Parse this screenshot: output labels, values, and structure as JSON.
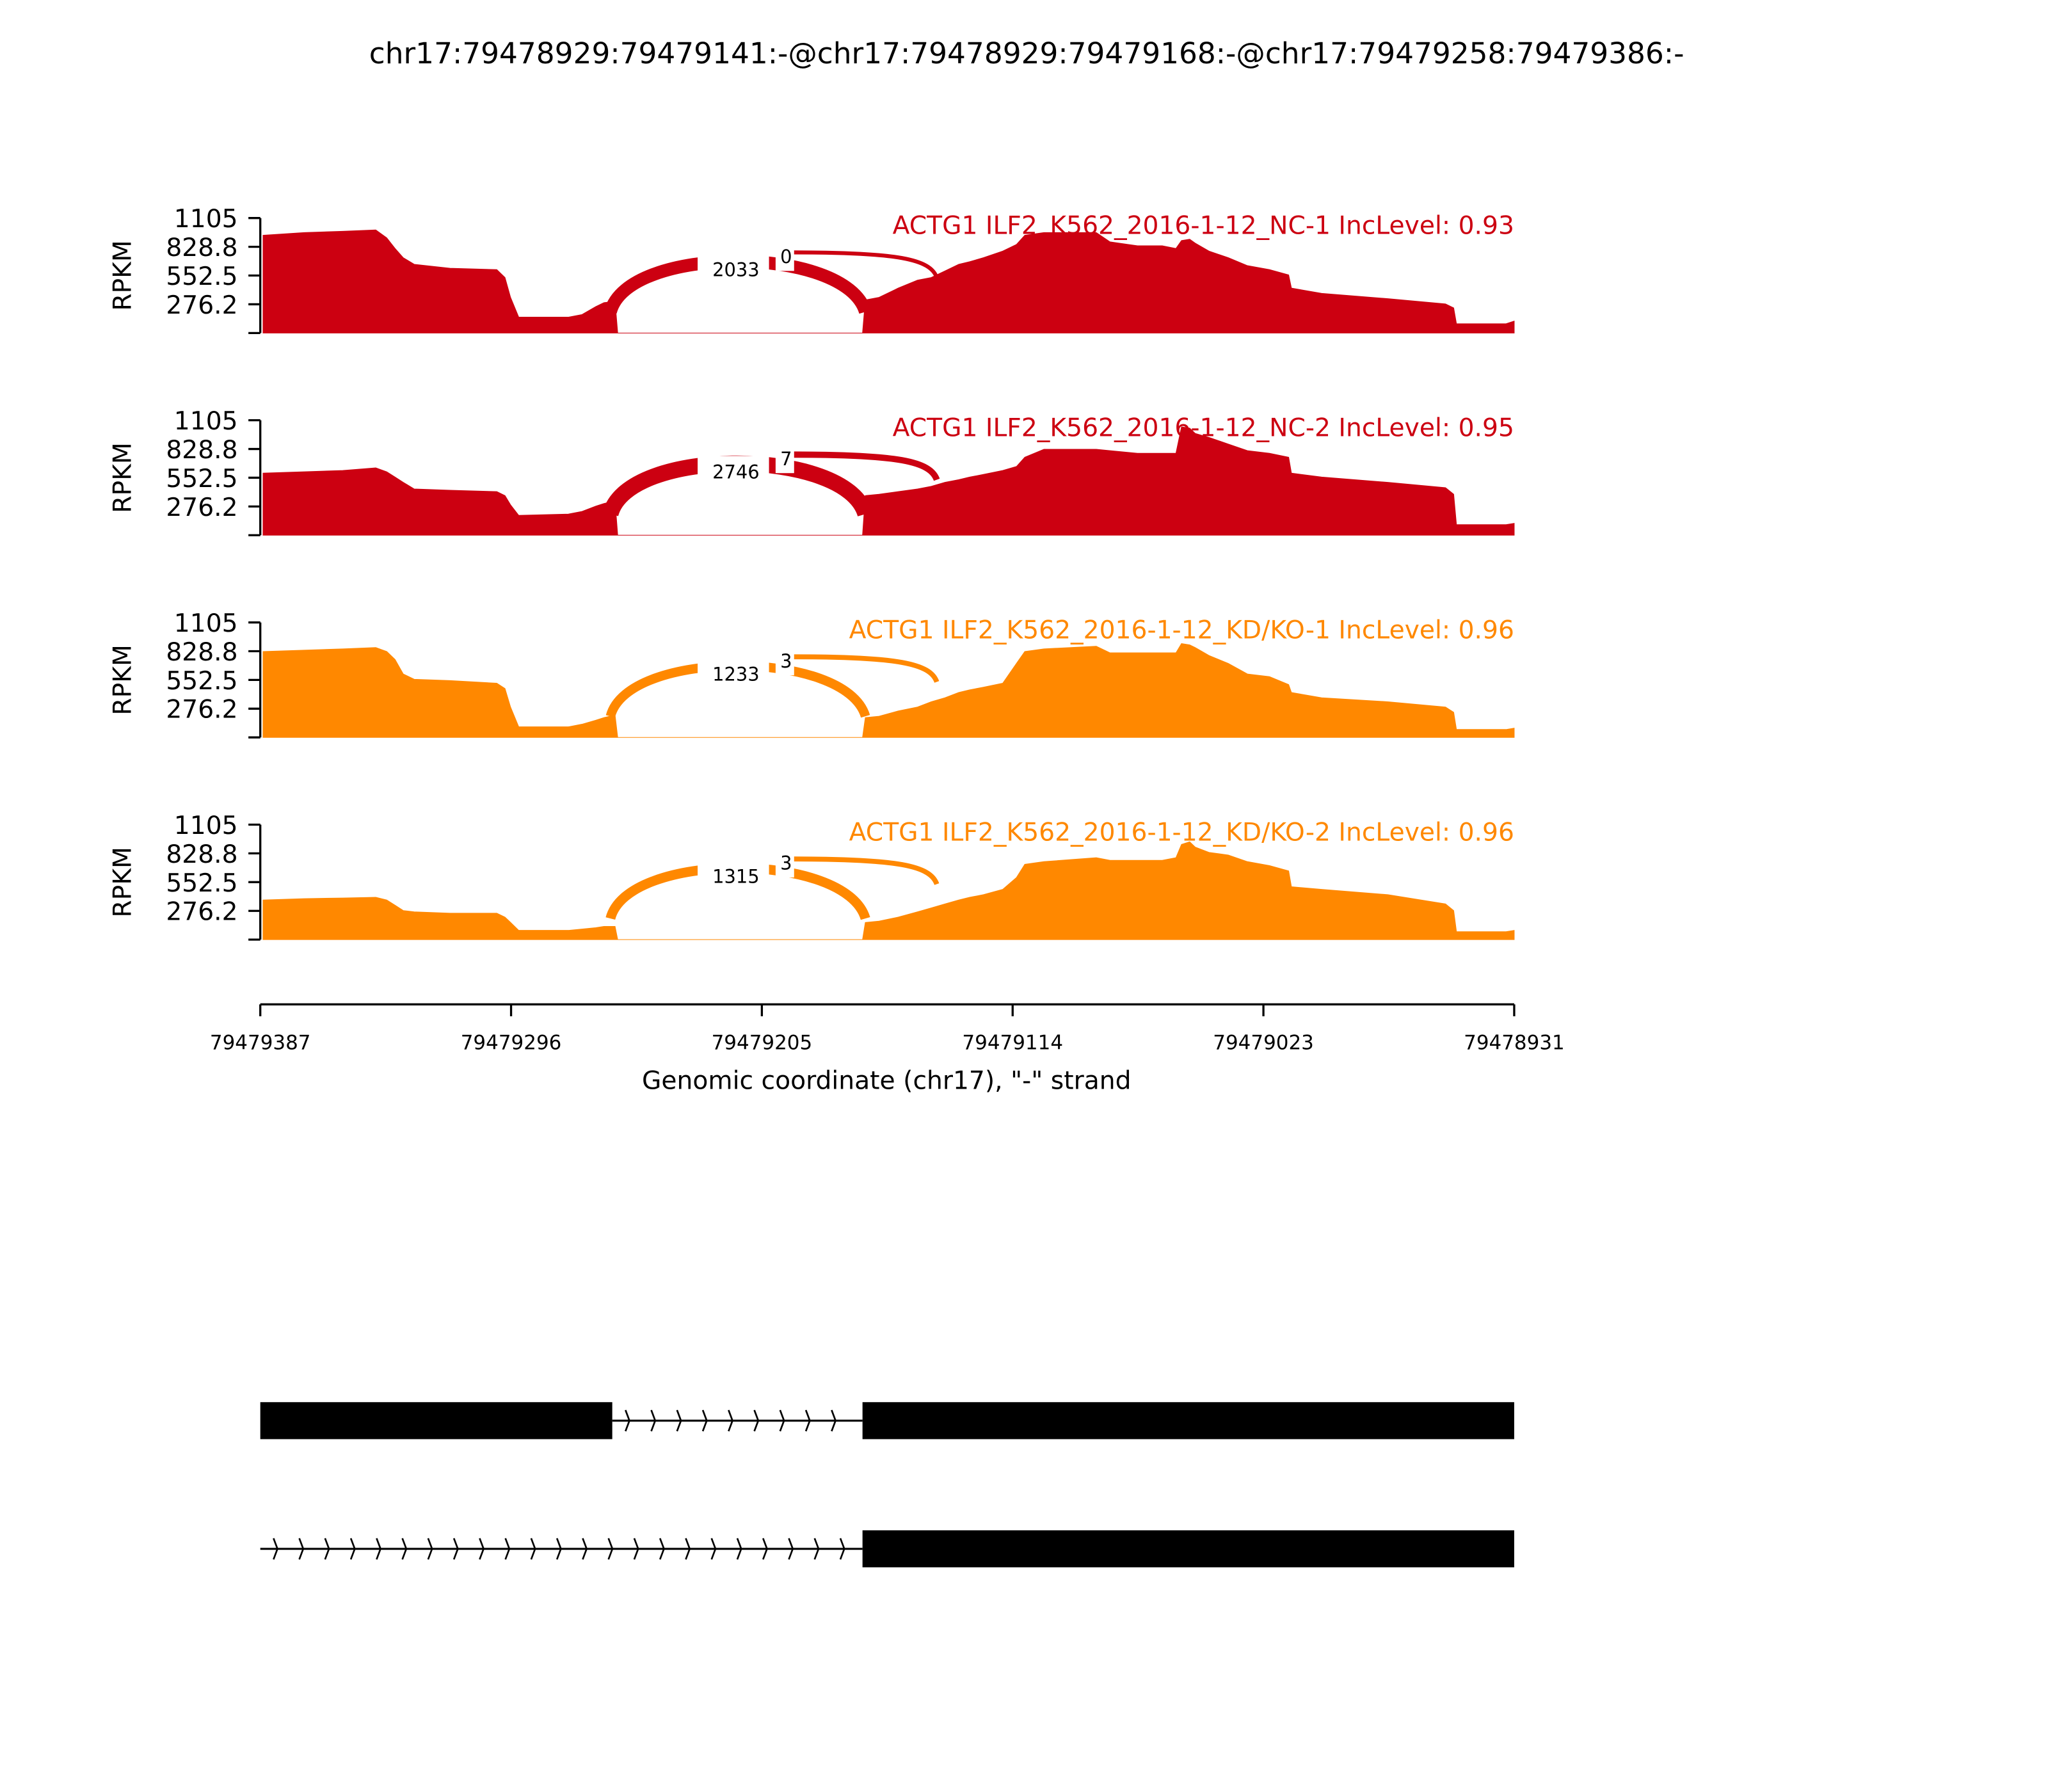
{
  "chart_data": {
    "type": "area",
    "title": "chr17:79478929:79479141:-@chr17:79478929:79479168:-@chr17:79479258:79479386:-",
    "xlabel": "Genomic coordinate (chr17), \"-\" strand",
    "ylabel": "RPKM",
    "xlim": [
      79479387,
      79478931
    ],
    "x_ticks": [
      "79479387",
      "79479296",
      "79479205",
      "79479114",
      "79479023",
      "79478931"
    ],
    "ylim": [
      0,
      1105
    ],
    "y_ticks": [
      "1105",
      "828.8",
      "552.5",
      "276.2"
    ],
    "positions": [
      79479386,
      79479371,
      79479357,
      79479345,
      79479341,
      79479338,
      79479335,
      79479331,
      79479318,
      79479301,
      79479298,
      79479296,
      79479293,
      79479275,
      79479270,
      79479265,
      79479262,
      79479258,
      79479257,
      79479168,
      79479167,
      79479162,
      79479155,
      79479148,
      79479143,
      79479138,
      79479133,
      79479129,
      79479124,
      79479117,
      79479112,
      79479109,
      79479102,
      79479083,
      79479078,
      79479068,
      79479059,
      79479054,
      79479052,
      79479049,
      79479047,
      79479042,
      79479035,
      79479028,
      79479020,
      79479013,
      79479012,
      79479001,
      79478977,
      79478956,
      79478953,
      79478952,
      79478934,
      79478931
    ],
    "series": [
      {
        "name": "ACTG1 ILF2_K562_2016-1-12_NC-1 IncLevel: 0.93",
        "color": "#CC0011",
        "junctions": [
          {
            "label": "2033",
            "count": 2033
          },
          {
            "label": "0",
            "count": 0
          }
        ],
        "rpkm": [
          940,
          965,
          978,
          991,
          914,
          813,
          724,
          660,
          622,
          610,
          533,
          343,
          152,
          152,
          178,
          254,
          292,
          305,
          0,
          0,
          318,
          343,
          432,
          508,
          533,
          597,
          660,
          686,
          724,
          787,
          851,
          940,
          965,
          965,
          876,
          838,
          838,
          813,
          889,
          902,
          864,
          787,
          724,
          648,
          610,
          559,
          432,
          381,
          330,
          279,
          241,
          89,
          89,
          114
        ]
      },
      {
        "name": "ACTG1 ILF2_K562_2016-1-12_NC-2 IncLevel: 0.95",
        "color": "#CC0011",
        "junctions": [
          {
            "label": "2746",
            "count": 2746
          },
          {
            "label": "7",
            "count": 7
          }
        ],
        "rpkm": [
          597,
          610,
          622,
          648,
          610,
          559,
          508,
          444,
          432,
          419,
          381,
          292,
          190,
          203,
          229,
          279,
          305,
          330,
          0,
          0,
          381,
          394,
          419,
          444,
          470,
          508,
          533,
          559,
          584,
          622,
          660,
          749,
          826,
          826,
          813,
          787,
          787,
          787,
          1042,
          1029,
          978,
          940,
          876,
          813,
          787,
          749,
          597,
          559,
          508,
          457,
          394,
          102,
          102,
          114
        ]
      },
      {
        "name": "ACTG1 ILF2_K562_2016-1-12_KD/KO-1 IncLevel: 0.96",
        "color": "#FF8800",
        "junctions": [
          {
            "label": "1233",
            "count": 1233
          },
          {
            "label": "3",
            "count": 3
          }
        ],
        "rpkm": [
          826,
          838,
          851,
          864,
          826,
          749,
          610,
          559,
          546,
          521,
          470,
          292,
          102,
          102,
          127,
          165,
          190,
          216,
          0,
          0,
          190,
          203,
          254,
          292,
          343,
          381,
          432,
          457,
          483,
          521,
          711,
          826,
          851,
          876,
          813,
          813,
          813,
          813,
          902,
          889,
          864,
          787,
          711,
          610,
          584,
          508,
          432,
          381,
          343,
          292,
          241,
          76,
          76,
          89
        ]
      },
      {
        "name": "ACTG1 ILF2_K562_2016-1-12_KD/KO-2 IncLevel: 0.96",
        "color": "#FF8800",
        "junctions": [
          {
            "label": "1315",
            "count": 1315
          },
          {
            "label": "3",
            "count": 3
          }
        ],
        "rpkm": [
          381,
          394,
          400,
          406,
          381,
          330,
          279,
          267,
          254,
          254,
          216,
          165,
          89,
          89,
          102,
          114,
          127,
          127,
          0,
          0,
          165,
          178,
          216,
          267,
          305,
          343,
          381,
          406,
          432,
          483,
          597,
          724,
          749,
          787,
          762,
          762,
          762,
          787,
          914,
          940,
          889,
          838,
          813,
          749,
          711,
          660,
          508,
          483,
          432,
          343,
          279,
          76,
          76,
          89
        ]
      }
    ],
    "gene_models": [
      {
        "exons": [
          [
            79479387,
            79479259
          ],
          [
            79479168,
            79478931
          ]
        ]
      },
      {
        "exons": [
          [
            79479168,
            79478931
          ]
        ],
        "intron_from": 79479387
      }
    ]
  }
}
